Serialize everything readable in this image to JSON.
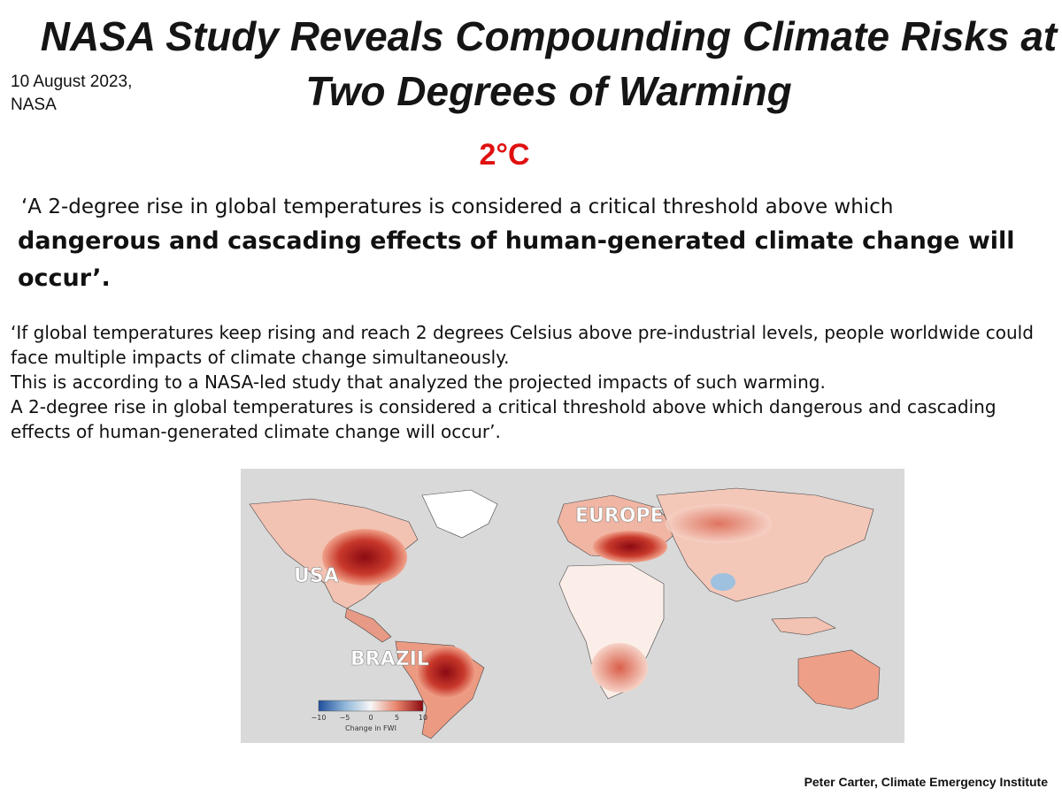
{
  "header": {
    "title": "NASA Study Reveals Compounding Climate Risks at Two Degrees of Warming",
    "source_date": "10 August 2023,",
    "source_org": "NASA"
  },
  "highlight": {
    "label": "2°C",
    "color": "#e01010"
  },
  "quote": {
    "plain": "‘A 2-degree rise in global temperatures is considered a critical threshold above which",
    "bold": "dangerous and cascading effects of human-generated climate change will occur’",
    "end": "."
  },
  "body": {
    "lines": [
      "‘If global temperatures keep rising and reach 2 degrees Celsius above pre-industrial levels, people worldwide could face multiple impacts of climate change simultaneously.",
      "This is according to a NASA-led study that analyzed the projected impacts of such warming.",
      "A 2-degree rise in global temperatures is considered a critical threshold above which dangerous and cascading effects of human-generated climate change will occur’."
    ]
  },
  "map": {
    "region_labels": {
      "usa": "USA",
      "europe": "EUROPE",
      "brazil": "BRAZIL"
    },
    "colorbar": {
      "ticks": [
        "−10",
        "−5",
        "0",
        "5",
        "10"
      ],
      "label": "Change in FWI",
      "colors": [
        "#1f4e9a",
        "#8fb6d9",
        "#f7f7f7",
        "#e8836a",
        "#8b0a12"
      ]
    },
    "ocean_color": "#d9d9d9"
  },
  "footer": {
    "credit": "Peter Carter, Climate Emergency Institute"
  }
}
